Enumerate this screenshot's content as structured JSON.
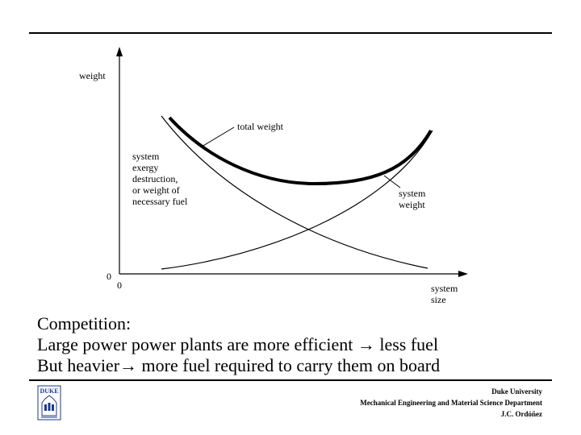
{
  "diagram": {
    "y_axis_label": "weight",
    "origin_y": "0",
    "origin_x": "0",
    "x_axis_label": [
      "system",
      "size"
    ],
    "total_label": "total weight",
    "fuel_label": [
      "system",
      "exergy",
      "destruction,",
      "or weight of",
      "necessary fuel"
    ],
    "system_label": [
      "system",
      "weight"
    ]
  },
  "text": {
    "line1": "Competition:",
    "line2": "Large power power plants are more efficient → less fuel",
    "line3": "But heavier→ more fuel required to carry them on board"
  },
  "footer": {
    "line1": "Duke University",
    "line2": "Mechanical Engineering and Material Science Department",
    "line3": "J.C. Ordóñez"
  },
  "logo": {
    "text": "DUKE",
    "color": "#1a3a8a"
  }
}
